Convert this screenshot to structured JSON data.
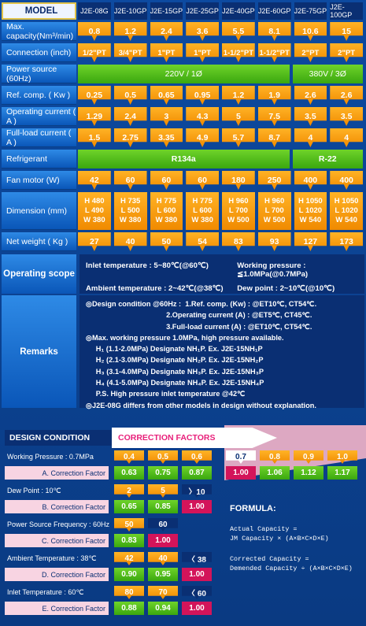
{
  "spec": {
    "model_label": "MODEL",
    "models": [
      "J2E-08G",
      "J2E-10GP",
      "J2E-15GP",
      "J2E-25GP",
      "J2E-40GP",
      "J2E-60GP",
      "J2E-75GP",
      "J2E-100GP"
    ],
    "max_capacity": {
      "label": "Max. capacity(Nm³/min)",
      "values": [
        "0.8",
        "1.2",
        "2.4",
        "3.6",
        "5.5",
        "8.1",
        "10.6",
        "15"
      ]
    },
    "connection": {
      "label": "Connection (inch)",
      "values": [
        "1/2\"PT",
        "3/4\"PT",
        "1\"PT",
        "1\"PT",
        "1-1/2\"PT",
        "1-1/2\"PT",
        "2\"PT",
        "2\"PT"
      ]
    },
    "power_source": {
      "label": "Power source (60Hz)",
      "left": "220V / 1Ø",
      "right": "380V / 3Ø"
    },
    "ref_comp": {
      "label": "Ref. comp. ( Kw )",
      "values": [
        "0.25",
        "0.5",
        "0.65",
        "0.95",
        "1.2",
        "1.9",
        "2.6",
        "2.6"
      ]
    },
    "operating_current": {
      "label": "Operating current ( A )",
      "values": [
        "1.29",
        "2.4",
        "3",
        "4.3",
        "5",
        "7.5",
        "3.5",
        "3.5"
      ]
    },
    "fullload_current": {
      "label": "Full-load current ( A )",
      "values": [
        "1.5",
        "2.75",
        "3.35",
        "4.9",
        "5.7",
        "8.7",
        "4",
        "4"
      ]
    },
    "refrigerant": {
      "label": "Refrigerant",
      "left": "R134a",
      "right": "R-22"
    },
    "fan_motor": {
      "label": "Fan motor (W)",
      "values": [
        "42",
        "60",
        "60",
        "60",
        "180",
        "250",
        "400",
        "400"
      ]
    },
    "dimension": {
      "label": "Dimension (mm)",
      "values": [
        [
          "H 480",
          "L 490",
          "W 380"
        ],
        [
          "H 735",
          "L 500",
          "W 380"
        ],
        [
          "H 775",
          "L 600",
          "W 380"
        ],
        [
          "H 775",
          "L 600",
          "W 380"
        ],
        [
          "H 960",
          "L 700",
          "W 500"
        ],
        [
          "H 960",
          "L 700",
          "W 500"
        ],
        [
          "H 1050",
          "L 1020",
          "W 540"
        ],
        [
          "H 1050",
          "L 1020",
          "W 540"
        ]
      ]
    },
    "net_weight": {
      "label": "Net weight ( Kg )",
      "values": [
        "27",
        "40",
        "50",
        "54",
        "83",
        "93",
        "127",
        "173"
      ]
    }
  },
  "scope": {
    "label": "Operating scope",
    "inlet": "Inlet temperature : 5~80℃(@60℃)",
    "working": "Working pressure : ≦1.0MPa(@0.7MPa)",
    "ambient": "Ambient temperature : 2~42℃(@38℃)",
    "dew": "Dew point : 2~10℃(@10℃)"
  },
  "remarks": {
    "label": "Remarks",
    "lines": [
      "◎Design condition @60Hz :  1.Ref. comp. (Kw) : @ET10℃, CT54℃.",
      "                                        2.Operating current (A) : @ET5℃, CT45℃.",
      "                                        3.Full-load current (A) : @ET10℃, CT54℃.",
      "◎Max. working pressure 1.0MPa, high pressure available.",
      "     H₁ (1.1-2.0MPa) Designate NH₁P. Ex. J2E-15NH₁P",
      "     H₂ (2.1-3.0MPa) Designate NH₂P. Ex. J2E-15NH₂P",
      "     H₃ (3.1-4.0MPa) Designate NH₃P. Ex. J2E-15NH₃P",
      "     H₄ (4.1-5.0MPa) Designate NH₄P. Ex. J2E-15NH₄P",
      "     P.S. High pressure inlet temperature @42℃",
      "◎J2E-08G differs from other models in design without explanation."
    ]
  },
  "correction": {
    "design_condition": "DESIGN  CONDITION",
    "correction_factors": "CORRECTION  FACTORS",
    "working_pressure": {
      "cond": "Working  Pressure : 0.7MPa",
      "factor": "A. Correction  Factor",
      "top": [
        "0.4",
        "0.5",
        "0.6",
        "0.7",
        "0.8",
        "0.9",
        "1.0"
      ],
      "bottom": [
        "0.63",
        "0.75",
        "0.87",
        "1.00",
        "1.06",
        "1.12",
        "1.17"
      ]
    },
    "dew_point": {
      "cond": "Dew  Point : 10℃",
      "factor": "B. Correction  Factor",
      "top": [
        "2",
        "5",
        "〉10"
      ],
      "bottom": [
        "0.65",
        "0.85",
        "1.00"
      ]
    },
    "power_freq": {
      "cond": "Power  Source  Frequency : 60Hz",
      "factor": "C. Correction  Factor",
      "top": [
        "50",
        "60"
      ],
      "bottom": [
        "0.83",
        "1.00"
      ]
    },
    "ambient": {
      "cond": "Ambient  Temperature : 38℃",
      "factor": "D. Correction  Factor",
      "top": [
        "42",
        "40",
        "〈 38"
      ],
      "bottom": [
        "0.90",
        "0.95",
        "1.00"
      ]
    },
    "inlet": {
      "cond": "Inlet  Temperature : 60℃",
      "factor": "E. Correction  Factor",
      "top": [
        "80",
        "70",
        "〈 60"
      ],
      "bottom": [
        "0.88",
        "0.94",
        "1.00"
      ]
    },
    "formula": {
      "title": "FORMULA:",
      "l1": "Actual Capacity =",
      "l2": "JM Capacity × (A×B×C×D×E)",
      "l3": "Corrected Capacity =",
      "l4": "Demended Capacity ÷ (A×B×C×D×E)"
    }
  },
  "colors": {
    "orange": "#f59a0c",
    "green": "#4cb81a",
    "magenta": "#d3145a",
    "navy": "#0a2f73",
    "blue": "#0d4aa0"
  }
}
